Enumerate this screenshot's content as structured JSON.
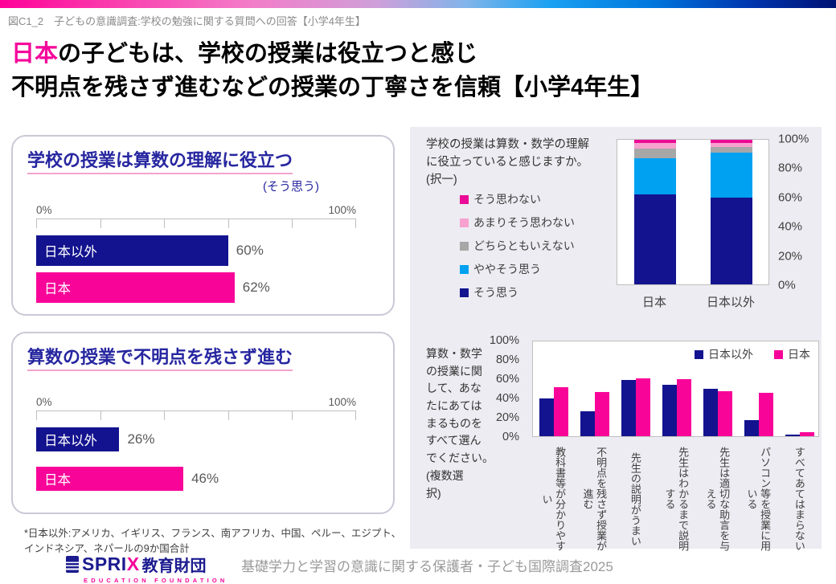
{
  "header": {
    "kicker": "図C1_2　子どもの意識調査:学校の勉強に関する質問への回答【小学4年生】"
  },
  "title": {
    "line1_highlight": "日本",
    "line1_rest": "の子どもは、学校の授業は役立つと感じ",
    "line2": "不明点を残さず進むなどの授業の丁寧さを信頼【小学4年生】"
  },
  "colors": {
    "navy": "#13138f",
    "magenta": "#f90499",
    "light_blue": "#00a1f1",
    "gray": "#a7a7a7",
    "light_pink": "#f7a1cf",
    "deep_pink": "#ea0b96",
    "title_blue": "#2626a0",
    "underline_pink": "#f2a5cb"
  },
  "chart_data": [
    {
      "id": "useful",
      "type": "bar",
      "orientation": "horizontal",
      "title": "学校の授業は算数の理解に役立つ",
      "subtitle": "(そう思う)",
      "categories": [
        "日本以外",
        "日本"
      ],
      "category_keys": [
        "non-japan",
        "japan"
      ],
      "values": [
        60,
        62
      ],
      "bar_colors": [
        "#13138f",
        "#f90499"
      ],
      "xlim": [
        0,
        100
      ],
      "xtick_labels": [
        "0%",
        "100%"
      ],
      "xticks_pct": [
        0,
        20,
        40,
        60,
        80,
        100
      ]
    },
    {
      "id": "no_unclear",
      "type": "bar",
      "orientation": "horizontal",
      "title": "算数の授業で不明点を残さず進む",
      "subtitle": "",
      "categories": [
        "日本以外",
        "日本"
      ],
      "category_keys": [
        "non-japan",
        "japan"
      ],
      "values": [
        26,
        46
      ],
      "bar_colors": [
        "#13138f",
        "#f90499"
      ],
      "xlim": [
        0,
        100
      ],
      "xtick_labels": [
        "0%",
        "100%"
      ],
      "xticks_pct": [
        0,
        20,
        40,
        60,
        80,
        100
      ]
    },
    {
      "id": "stacked",
      "type": "stacked-bar",
      "question": "学校の授業は算数・数学の理解\nに役立っていると感じますか。\n(択一)",
      "categories": [
        "日本",
        "日本以外"
      ],
      "category_keys": [
        "japan",
        "non-japan"
      ],
      "series": [
        {
          "name": "そう思う",
          "key": "agree",
          "color": "#13138f",
          "values": [
            62,
            60
          ]
        },
        {
          "name": "ややそう思う",
          "key": "somewhat-agree",
          "color": "#00a1f1",
          "values": [
            25,
            31
          ]
        },
        {
          "name": "どちらともいえない",
          "key": "neutral",
          "color": "#a7a7a7",
          "values": [
            7,
            4
          ]
        },
        {
          "name": "あまりそう思わない",
          "key": "somewhat-disagree",
          "color": "#f7a1cf",
          "values": [
            4,
            3
          ]
        },
        {
          "name": "そう思わない",
          "key": "disagree",
          "color": "#ea0b96",
          "values": [
            2,
            2
          ]
        }
      ],
      "legend_order_top_to_bottom": [
        "そう思わない",
        "あまりそう思わない",
        "どちらともいえない",
        "ややそう思う",
        "そう思う"
      ],
      "ylim": [
        0,
        100
      ],
      "yticks": [
        "100%",
        "80%",
        "60%",
        "40%",
        "20%",
        "0%"
      ]
    },
    {
      "id": "multi",
      "type": "bar",
      "orientation": "vertical-grouped",
      "question": "算数・数学\nの授業に関\nして、あな\nたにあては\nまるものを\nすべて選ん\nでください。\n(複数選\n択)",
      "categories": [
        "教科書等が分かりやすい",
        "不明点を残さず授業が進む",
        "先生の説明がうまい",
        "先生はわかるまで説明する",
        "先生は適切な助言を与える",
        "パソコン等を授業に用いる",
        "すべてあてはまらない"
      ],
      "category_keys": [
        "textbook-easy",
        "no-unclear-points",
        "teacher-explains-well",
        "teacher-explains-until-understood",
        "teacher-gives-advice",
        "uses-computers",
        "none-apply"
      ],
      "series": [
        {
          "name": "日本以外",
          "key": "non-japan",
          "color": "#13138f",
          "values": [
            39,
            26,
            58,
            53,
            49,
            17,
            2
          ]
        },
        {
          "name": "日本",
          "key": "japan",
          "color": "#f90499",
          "values": [
            51,
            46,
            60,
            59,
            47,
            45,
            4
          ]
        }
      ],
      "ylim": [
        0,
        100
      ],
      "yticks": [
        "100%",
        "80%",
        "60%",
        "40%",
        "20%",
        "0%"
      ],
      "legend_position": "top-right-inside"
    }
  ],
  "footnote": "*日本以外:アメリカ、イギリス、フランス、南アフリカ、中国、ペルー、エジプト、\nインドネシア、ネパールの9か国合計",
  "footer": {
    "logo_sprix": "SPRI",
    "logo_x": "X",
    "logo_jp": "教育財団",
    "logo_sub": "EDUCATION FOUNDATION",
    "survey": "基礎学力と学習の意識に関する保護者・子ども国際調査2025"
  }
}
